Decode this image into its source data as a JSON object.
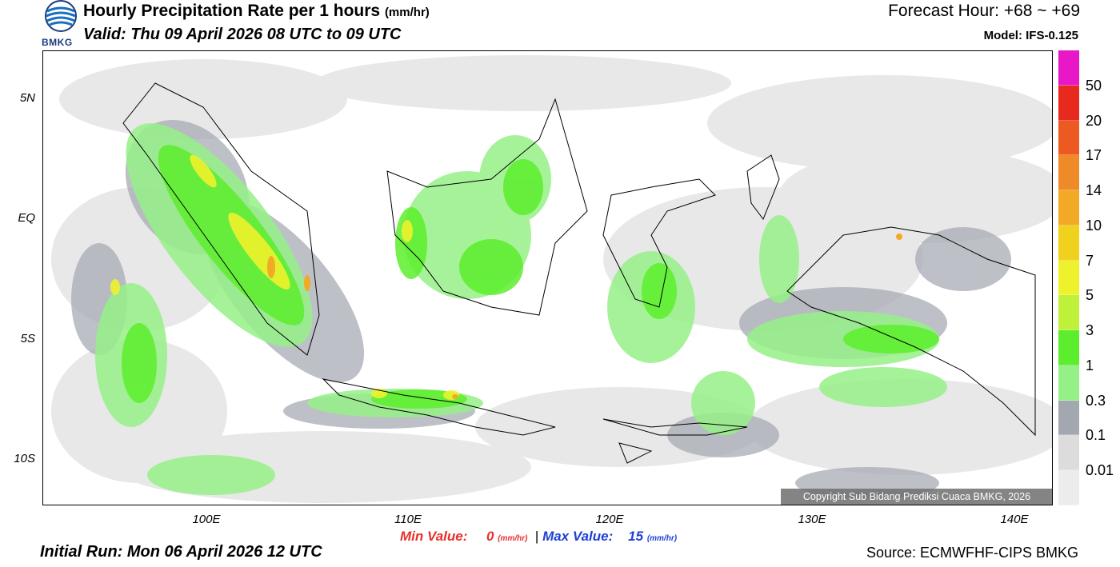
{
  "header": {
    "title_main": "Hourly Precipitation Rate per 1 hours",
    "title_unit": "(mm/hr)",
    "valid": "Valid: Thu 09 April 2026 08 UTC to 09 UTC",
    "forecast_hour": "Forecast Hour: +68 ~ +69",
    "model": "Model: IFS-0.125",
    "logo_text": "BMKG"
  },
  "axes": {
    "lat_labels": [
      "5N",
      "EQ",
      "5S",
      "10S"
    ],
    "lon_labels": [
      "100E",
      "110E",
      "120E",
      "130E",
      "140E"
    ]
  },
  "colorbar": {
    "labels": [
      "50",
      "20",
      "17",
      "14",
      "10",
      "7",
      "5",
      "3",
      "1",
      "0.3",
      "0.1",
      "0.01"
    ],
    "colors": [
      "#e818c8",
      "#e82a1e",
      "#ec5a22",
      "#ef8a28",
      "#f2aa26",
      "#f0d21e",
      "#eef22c",
      "#bff03a",
      "#5cee2c",
      "#96f088",
      "#a3a7b0",
      "#dcdcdc",
      "#ececec"
    ]
  },
  "footer": {
    "min_label": "Min Value:",
    "min_value": "0",
    "max_label": "Max Value:",
    "max_value": "15",
    "unit": "(mm/hr)",
    "separator": "|",
    "initial_run": "Initial Run: Mon 06 April 2026 12 UTC",
    "source": "Source: ECMWFHF-CIPS BMKG",
    "copyright": "Copyright Sub Bidang Prediksi Cuaca BMKG, 2026"
  }
}
